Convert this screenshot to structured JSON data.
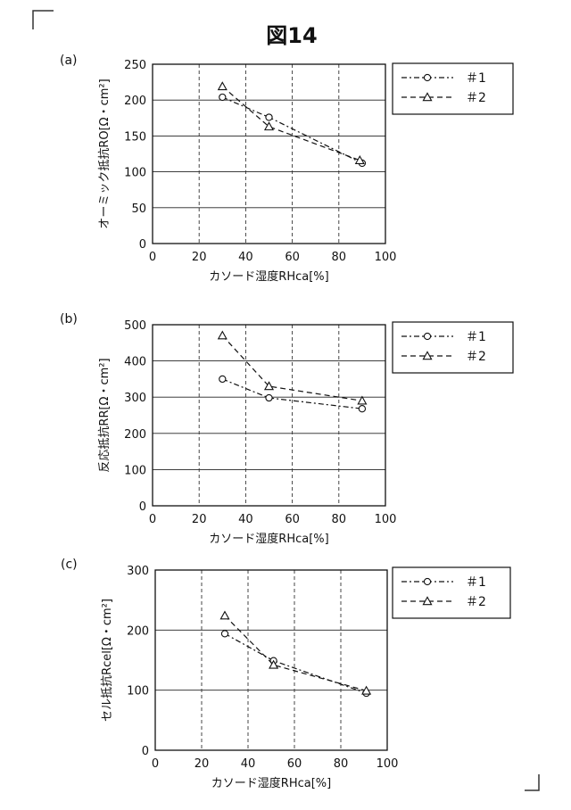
{
  "figure_title": "図14",
  "chart_data": [
    {
      "type": "line",
      "panel_label": "(a)",
      "ylabel": "オーミック抵抗RO[Ω・cm²]",
      "xlabel": "カソード湿度RHca[%]",
      "xlim": [
        0,
        100
      ],
      "ylim": [
        0,
        250
      ],
      "xticks": [
        0,
        20,
        40,
        60,
        80,
        100
      ],
      "yticks": [
        0,
        50,
        100,
        150,
        200,
        250
      ],
      "grid": "horizontal solid, vertical dashed",
      "legend_position": "right",
      "series": [
        {
          "name": "＃1",
          "marker": "circle",
          "style": "dash-dot",
          "x": [
            30,
            50,
            90
          ],
          "y": [
            204,
            176,
            112
          ]
        },
        {
          "name": "＃2",
          "marker": "triangle",
          "style": "dashed",
          "x": [
            30,
            50,
            89
          ],
          "y": [
            219,
            163,
            116
          ]
        }
      ]
    },
    {
      "type": "line",
      "panel_label": "(b)",
      "ylabel": "反応抵抗RR[Ω・cm²]",
      "xlabel": "カソード湿度RHca[%]",
      "xlim": [
        0,
        100
      ],
      "ylim": [
        0,
        500
      ],
      "xticks": [
        0,
        20,
        40,
        60,
        80,
        100
      ],
      "yticks": [
        0,
        100,
        200,
        300,
        400,
        500
      ],
      "grid": "horizontal solid, vertical dashed",
      "legend_position": "right",
      "series": [
        {
          "name": "＃1",
          "marker": "circle",
          "style": "dash-dot",
          "x": [
            30,
            50,
            90
          ],
          "y": [
            350,
            298,
            268
          ]
        },
        {
          "name": "＃2",
          "marker": "triangle",
          "style": "dashed",
          "x": [
            30,
            50,
            90
          ],
          "y": [
            470,
            330,
            290
          ]
        }
      ]
    },
    {
      "type": "line",
      "panel_label": "(c)",
      "ylabel": "セル抵抗Rcel[Ω・cm²]",
      "xlabel": "カソード湿度RHca[%]",
      "xlim": [
        0,
        100
      ],
      "ylim": [
        0,
        300
      ],
      "xticks": [
        0,
        20,
        40,
        60,
        80,
        100
      ],
      "yticks": [
        0,
        100,
        200,
        300
      ],
      "grid": "horizontal solid, vertical dashed",
      "legend_position": "right",
      "series": [
        {
          "name": "＃1",
          "marker": "circle",
          "style": "dash-dot",
          "x": [
            30,
            51,
            91
          ],
          "y": [
            194,
            149,
            95
          ]
        },
        {
          "name": "＃2",
          "marker": "triangle",
          "style": "dashed",
          "x": [
            30,
            51,
            91
          ],
          "y": [
            224,
            142,
            99
          ]
        }
      ]
    }
  ]
}
